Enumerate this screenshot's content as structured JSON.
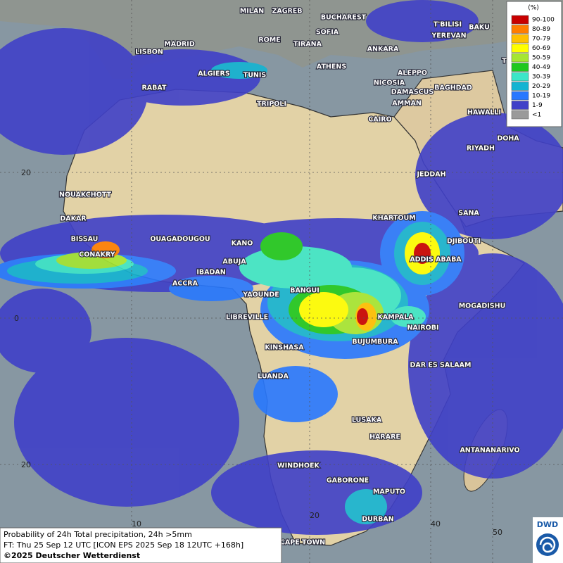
{
  "map": {
    "cities": [
      "MILAN",
      "ZAGREB",
      "BUCHAREST",
      "LISBON",
      "MADRID",
      "ROME",
      "SOFIA",
      "TIRANA",
      "T'BILISI",
      "BAKU",
      "YEREVAN",
      "ANKARA",
      "ATHENS",
      "TEHRAN",
      "ALGIERS",
      "TUNIS",
      "RABAT",
      "ALEPPO",
      "NICOSIA",
      "BAGHDAD",
      "DAMASCUS",
      "AMMAN",
      "TRIPOLI",
      "HAWALLI",
      "DOHA",
      "CAIRO",
      "RIYADH",
      "JEDDAH",
      "NOUAKCHOTT",
      "DAKAR",
      "SANA",
      "KHARTOUM",
      "BISSAU",
      "CONAKRY",
      "OUAGADOUGOU",
      "KANO",
      "ABUJA",
      "DJIBOUTI",
      "ADDIS ABABA",
      "IBADAN",
      "ACCRA",
      "YAOUNDE",
      "BANGUI",
      "MOGADISHU",
      "LIBREVILLE",
      "KAMPALA",
      "NAIROBI",
      "BUJUMBURA",
      "KINSHASA",
      "DAR ES SALAAM",
      "LUANDA",
      "LUSAKA",
      "HARARE",
      "ANTANANARIVO",
      "WINDHOEK",
      "GABORONE",
      "MAPUTO",
      "DURBAN",
      "CAPE TOWN"
    ],
    "grid_labels": [
      20,
      0,
      20,
      10,
      20,
      40,
      50
    ]
  },
  "legend": {
    "title": "(%)",
    "items": [
      {
        "label": "90-100",
        "color": "#c80000"
      },
      {
        "label": "80-89",
        "color": "#ff7d00"
      },
      {
        "label": "70-79",
        "color": "#ffc000"
      },
      {
        "label": "60-69",
        "color": "#ffff00"
      },
      {
        "label": "50-59",
        "color": "#a6e632"
      },
      {
        "label": "40-49",
        "color": "#1ec81e"
      },
      {
        "label": "30-39",
        "color": "#3ce6c8"
      },
      {
        "label": "20-29",
        "color": "#14b4d2"
      },
      {
        "label": "10-19",
        "color": "#2878ff"
      },
      {
        "label": "1-9",
        "color": "#4040c8"
      },
      {
        "label": "<1",
        "color": "#9a9a9a"
      }
    ]
  },
  "caption": {
    "lines": [
      "Probability of 24h Total precipitation, 24h >5mm",
      "FT: Thu 25 Sep 12 UTC [ICON EPS 2025 Sep 18 12UTC +168h]",
      "©2025 Deutscher Wetterdienst"
    ]
  },
  "logo": {
    "text": "DWD"
  }
}
